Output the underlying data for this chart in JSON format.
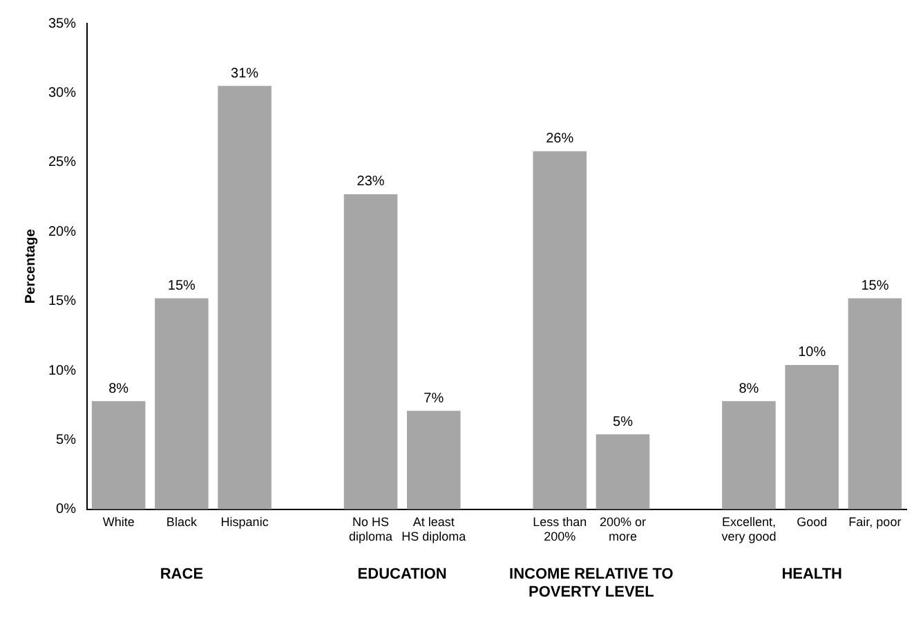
{
  "chart_data": {
    "type": "bar",
    "ylabel": "Percentage",
    "categories": [
      "White",
      "Black",
      "Hispanic",
      null,
      "No HS diploma",
      "At least HS diploma",
      null,
      "Less than 200%",
      "200% or more",
      null,
      "Excellent, very good",
      "Good",
      "Fair, poor"
    ],
    "values": [
      7.8,
      15.2,
      30.5,
      null,
      22.7,
      7.1,
      null,
      25.8,
      5.4,
      null,
      7.8,
      10.4,
      15.2
    ],
    "value_labels": [
      "8%",
      "15%",
      "31%",
      null,
      "23%",
      "7%",
      null,
      "26%",
      "5%",
      null,
      "8%",
      "10%",
      "15%"
    ],
    "color": "#a6a6a6",
    "ylim": [
      0,
      35
    ],
    "yticks": [
      {
        "value": 0,
        "label": "0%"
      },
      {
        "value": 5,
        "label": "5%"
      },
      {
        "value": 10,
        "label": "10%"
      },
      {
        "value": 15,
        "label": "15%"
      },
      {
        "value": 20,
        "label": "20%"
      },
      {
        "value": 25,
        "label": "25%"
      },
      {
        "value": 30,
        "label": "30%"
      },
      {
        "value": 35,
        "label": "35%"
      }
    ],
    "annotations": [
      "RACE",
      "EDUCATION",
      "INCOME RELATIVE TO POVERTY LEVEL",
      "HEALTH"
    ],
    "grid": false,
    "legend": false
  }
}
